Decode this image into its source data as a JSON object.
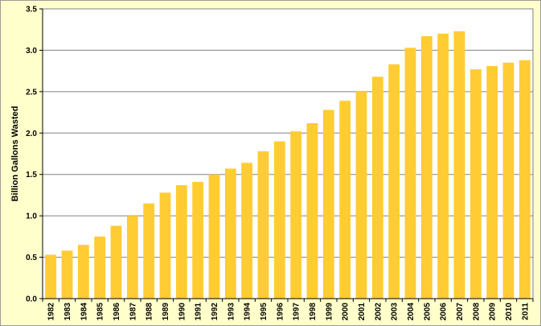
{
  "chart_data": {
    "type": "bar",
    "title": "",
    "xlabel": "",
    "ylabel": "Billion Gallons Wasted",
    "ylim": [
      0,
      3.5
    ],
    "yticks": [
      0.0,
      0.5,
      1.0,
      1.5,
      2.0,
      2.5,
      3.0,
      3.5
    ],
    "ytick_labels": [
      "0.0",
      "0.5",
      "1.0",
      "1.5",
      "2.0",
      "2.5",
      "3.0",
      "3.5"
    ],
    "grid": true,
    "legend": "none",
    "categories": [
      "1982",
      "1983",
      "1984",
      "1985",
      "1986",
      "1987",
      "1988",
      "1989",
      "1990",
      "1991",
      "1992",
      "1993",
      "1994",
      "1995",
      "1996",
      "1997",
      "1998",
      "1999",
      "2000",
      "2001",
      "2002",
      "2003",
      "2004",
      "2005",
      "2006",
      "2007",
      "2008",
      "2009",
      "2010",
      "2011"
    ],
    "values": [
      0.53,
      0.58,
      0.65,
      0.75,
      0.88,
      1.0,
      1.15,
      1.28,
      1.37,
      1.41,
      1.5,
      1.57,
      1.64,
      1.78,
      1.9,
      2.02,
      2.12,
      2.28,
      2.39,
      2.51,
      2.68,
      2.83,
      3.03,
      3.17,
      3.2,
      3.23,
      2.77,
      2.81,
      2.85,
      2.88
    ],
    "colors": {
      "bar": "#FFCC33",
      "plot_background": "#FFFFFF",
      "frame_background": "#FFFFCC",
      "gridline": "#808080",
      "axis": "#000000"
    }
  }
}
